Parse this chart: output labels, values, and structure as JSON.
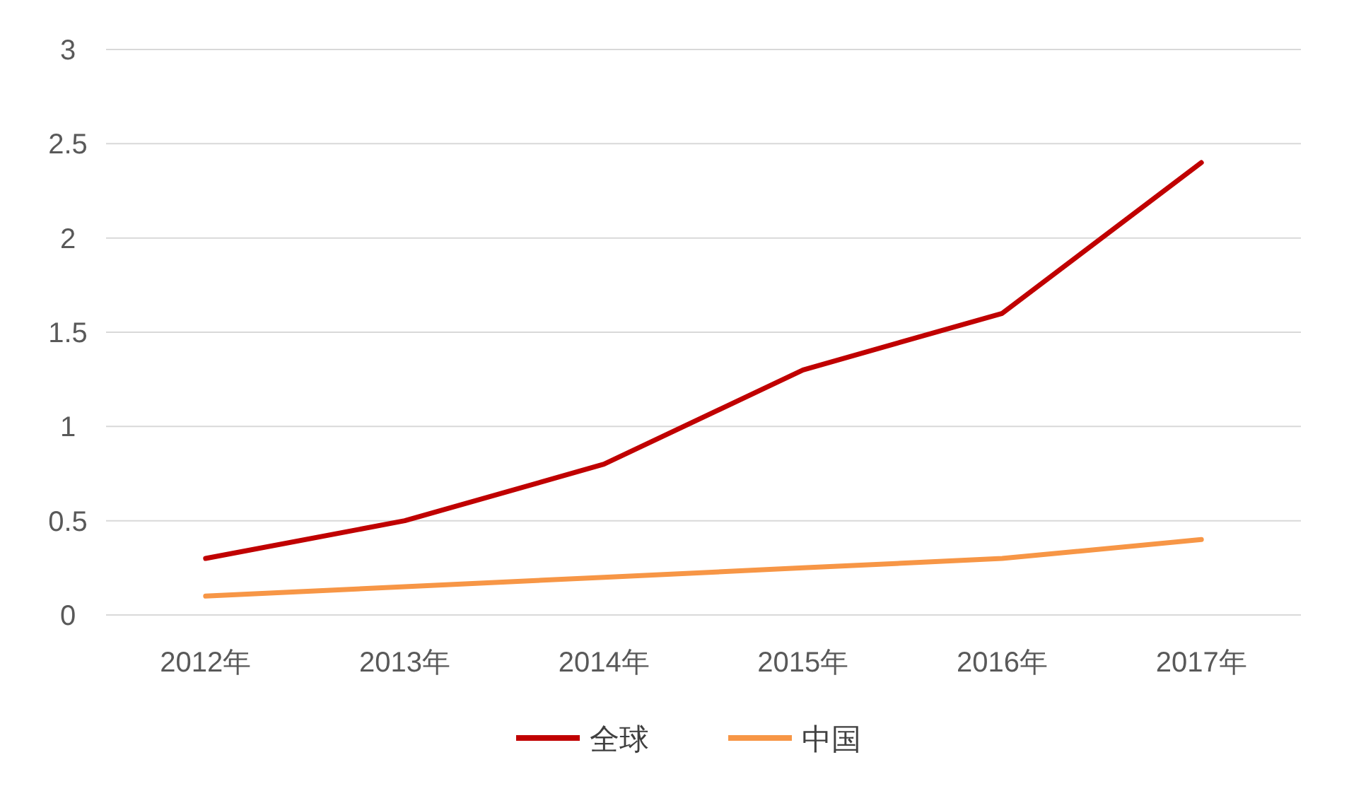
{
  "chart_data": {
    "type": "line",
    "categories": [
      "2012年",
      "2013年",
      "2014年",
      "2015年",
      "2016年",
      "2017年"
    ],
    "series": [
      {
        "name": "全球",
        "color": "#c00000",
        "values": [
          0.3,
          0.5,
          0.8,
          1.3,
          1.6,
          2.4
        ]
      },
      {
        "name": "中国",
        "color": "#f79646",
        "values": [
          0.1,
          0.15,
          0.2,
          0.25,
          0.3,
          0.4
        ]
      }
    ],
    "ylim": [
      0,
      3
    ],
    "yticks": [
      0,
      0.5,
      1,
      1.5,
      2,
      2.5,
      3
    ],
    "grid": "y",
    "legend": "bottom",
    "marker": "none",
    "line_style": "solid"
  }
}
